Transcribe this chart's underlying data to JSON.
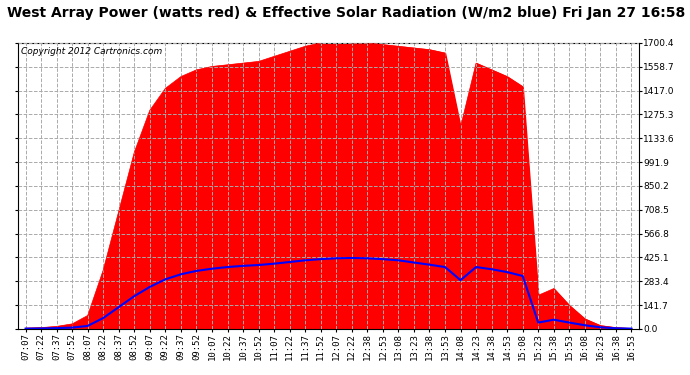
{
  "title": "West Array Power (watts red) & Effective Solar Radiation (W/m2 blue) Fri Jan 27 16:58",
  "copyright": "Copyright 2012 Cartronics.com",
  "ymax": 1700.4,
  "ytick_interval": 141.7,
  "background_color": "#ffffff",
  "plot_bg_color": "#ffffff",
  "red_color": "#ff0000",
  "blue_color": "#0000ff",
  "grid_color": "#aaaaaa",
  "title_fontsize": 10,
  "copyright_fontsize": 6.5,
  "tick_label_fontsize": 6.5,
  "times": [
    "07:07",
    "07:22",
    "07:37",
    "07:52",
    "08:07",
    "08:22",
    "08:37",
    "08:52",
    "09:07",
    "09:22",
    "09:37",
    "09:52",
    "10:07",
    "10:22",
    "10:37",
    "10:52",
    "11:07",
    "11:22",
    "11:37",
    "11:52",
    "12:07",
    "12:22",
    "12:38",
    "12:53",
    "13:08",
    "13:23",
    "13:38",
    "13:53",
    "14:08",
    "14:23",
    "14:38",
    "14:53",
    "15:08",
    "15:23",
    "15:38",
    "15:53",
    "16:08",
    "16:23",
    "16:38",
    "16:53"
  ],
  "power_values": [
    5,
    8,
    15,
    30,
    80,
    350,
    700,
    1050,
    1300,
    1430,
    1500,
    1540,
    1560,
    1570,
    1580,
    1590,
    1620,
    1650,
    1680,
    1700,
    1710,
    1700,
    1700,
    1690,
    1680,
    1670,
    1660,
    1640,
    1200,
    1580,
    1540,
    1500,
    1440,
    200,
    240,
    140,
    60,
    20,
    8,
    3
  ],
  "solar_values": [
    2,
    3,
    5,
    8,
    18,
    65,
    130,
    195,
    250,
    295,
    325,
    345,
    358,
    368,
    375,
    380,
    388,
    398,
    408,
    415,
    420,
    422,
    420,
    415,
    408,
    395,
    382,
    368,
    290,
    368,
    355,
    338,
    315,
    38,
    55,
    38,
    22,
    10,
    4,
    2
  ]
}
